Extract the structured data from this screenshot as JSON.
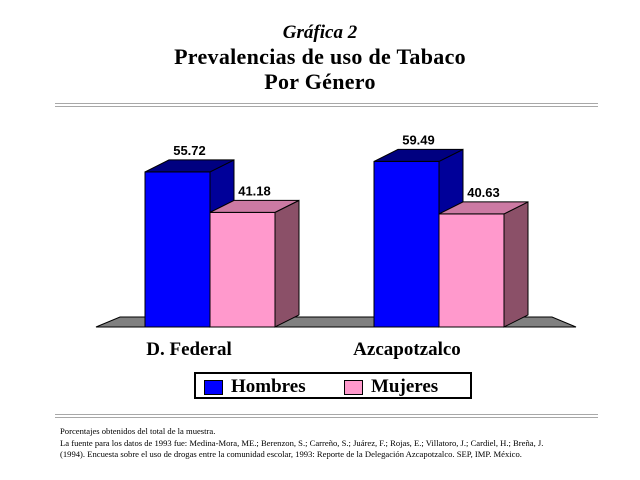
{
  "header": {
    "label": "Gráfica 2",
    "title_line1": "Prevalencias de uso de Tabaco",
    "title_line2": "Por Género"
  },
  "chart_data": {
    "type": "bar",
    "categories": [
      "D. Federal",
      "Azcapotzalco"
    ],
    "series": [
      {
        "name": "Hombres",
        "values": [
          55.72,
          59.49
        ],
        "color": "#0000ff",
        "side_color": "#000099",
        "top_color": "#000080"
      },
      {
        "name": "Mujeres",
        "values": [
          41.18,
          40.63
        ],
        "color": "#ff99cc",
        "side_color": "#8b5068",
        "top_color": "#cc7aa3"
      }
    ],
    "value_labels": [
      [
        "55.72",
        "59.49"
      ],
      [
        "41.18",
        "40.63"
      ]
    ],
    "ylim": [
      0,
      60
    ],
    "grid": false,
    "legend": "bottom",
    "floor_color": "#808080"
  },
  "legend": {
    "items": [
      "Hombres",
      "Mujeres"
    ]
  },
  "notes": [
    "Porcentajes obtenidos del total de la muestra.",
    "La fuente para los datos de 1993 fue: Medina-Mora, ME.; Berenzon, S.; Carreño, S.; Juárez, F.; Rojas, E.; Villatoro, J.; Cardiel, H.; Breña, J.",
    "(1994). Encuesta sobre el uso de drogas entre la comunidad escolar, 1993: Reporte de la Delegación Azcapotzalco. SEP, IMP. México."
  ]
}
